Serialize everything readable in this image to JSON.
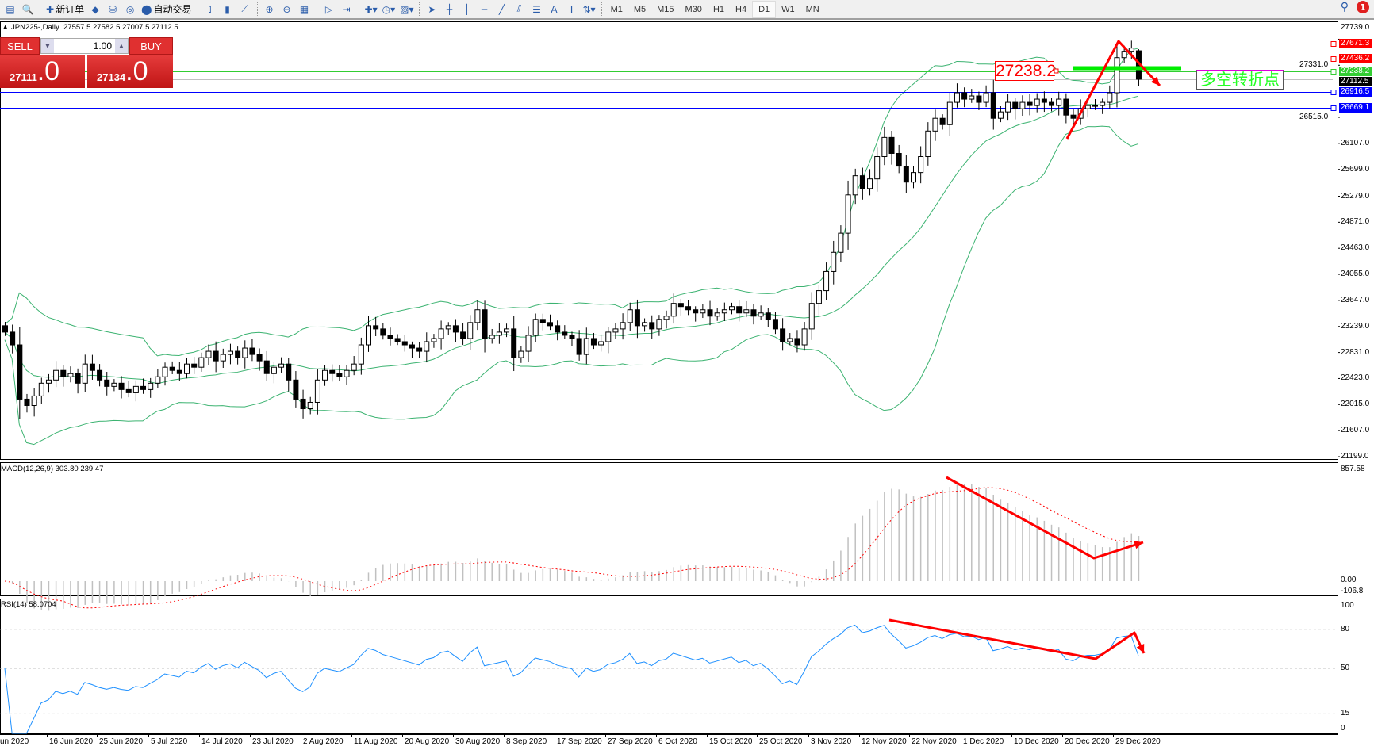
{
  "toolbar": {
    "buttons": [
      {
        "icon": "chart-window-icon",
        "glyph": "▤"
      },
      {
        "icon": "market-watch-icon",
        "glyph": "🔍"
      },
      {
        "icon": "new-order-icon",
        "glyph": "✚",
        "label": "新订单"
      },
      {
        "icon": "metaeditor-icon",
        "glyph": "◆"
      },
      {
        "icon": "terminal-icon",
        "glyph": "⛁"
      },
      {
        "icon": "signals-icon",
        "glyph": "◎"
      },
      {
        "icon": "auto-trading-icon",
        "glyph": "⬤",
        "label": "自动交易"
      },
      {
        "icon": "bar-chart-icon",
        "glyph": "⫾"
      },
      {
        "icon": "candlestick-icon",
        "glyph": "▮"
      },
      {
        "icon": "line-chart-icon",
        "glyph": "⟋"
      },
      {
        "icon": "zoom-in-icon",
        "glyph": "⊕"
      },
      {
        "icon": "zoom-out-icon",
        "glyph": "⊖"
      },
      {
        "icon": "tile-windows-icon",
        "glyph": "▦"
      },
      {
        "icon": "auto-scroll-icon",
        "glyph": "▷"
      },
      {
        "icon": "chart-shift-icon",
        "glyph": "⇥"
      },
      {
        "icon": "indicators-icon",
        "glyph": "✚▾"
      },
      {
        "icon": "periods-icon",
        "glyph": "◷▾"
      },
      {
        "icon": "templates-icon",
        "glyph": "▨▾"
      },
      {
        "icon": "cursor-icon",
        "glyph": "➤"
      },
      {
        "icon": "crosshair-icon",
        "glyph": "┼"
      },
      {
        "icon": "vertical-line-icon",
        "glyph": "│"
      },
      {
        "icon": "horizontal-line-icon",
        "glyph": "─"
      },
      {
        "icon": "trendline-icon",
        "glyph": "╱"
      },
      {
        "icon": "equidistant-channel-icon",
        "glyph": "⫽"
      },
      {
        "icon": "fibonacci-icon",
        "glyph": "☰"
      },
      {
        "icon": "text-icon",
        "glyph": "A"
      },
      {
        "icon": "text-label-icon",
        "glyph": "T"
      },
      {
        "icon": "arrows-icon",
        "glyph": "⇅▾"
      }
    ],
    "timeframes": [
      "M1",
      "M5",
      "M15",
      "M30",
      "H1",
      "H4",
      "D1",
      "W1",
      "MN"
    ],
    "active_timeframe": "D1",
    "search_icon": "search-icon",
    "notification_count": "1"
  },
  "chart_header": {
    "symbol": "JPN225-,Daily",
    "ohlc": "27557.5 27582.5 27007.5 27112.5"
  },
  "trade_panel": {
    "sell_label": "SELL",
    "buy_label": "BUY",
    "lot": "1.00",
    "sell_price_main": "27111",
    "sell_price_big": ".0",
    "buy_price_main": "27134",
    "buy_price_big": ".0"
  },
  "price_axis": [
    "27739.0",
    "27331.0",
    "26515.0",
    "26107.0",
    "25699.0",
    "25279.0",
    "24871.0",
    "24463.0",
    "24055.0",
    "23647.0",
    "23239.0",
    "22831.0",
    "22423.0",
    "22015.0",
    "21607.0",
    "21199.0"
  ],
  "levels": [
    {
      "price": "27671.3",
      "color": "#ff0000"
    },
    {
      "price": "27436.2",
      "color": "#ff0000"
    },
    {
      "price": "27238.2",
      "color": "#32cd32"
    },
    {
      "price": "27112.5",
      "color": "#000000",
      "line": "#c0c0c0"
    },
    {
      "price": "26916.5",
      "color": "#0000ff"
    },
    {
      "price": "26669.1",
      "color": "#0000ff"
    }
  ],
  "time_axis": [
    "Jun 2020",
    "16 Jun 2020",
    "25 Jun 2020",
    "5 Jul 2020",
    "14 Jul 2020",
    "23 Jul 2020",
    "2 Aug 2020",
    "11 Aug 2020",
    "20 Aug 2020",
    "30 Aug 2020",
    "8 Sep 2020",
    "17 Sep 2020",
    "27 Sep 2020",
    "6 Oct 2020",
    "15 Oct 2020",
    "25 Oct 2020",
    "3 Nov 2020",
    "12 Nov 2020",
    "22 Nov 2020",
    "1 Dec 2020",
    "10 Dec 2020",
    "20 Dec 2020",
    "29 Dec 2020"
  ],
  "macd": {
    "label": "MACD(12,26,9) 303.80 239.47",
    "axis": [
      "857.58",
      "0.00",
      "-106.8"
    ],
    "max": 857.58,
    "min": -106.8
  },
  "rsi": {
    "label": "RSI(14) 58.0704",
    "axis": [
      "100",
      "80",
      "50",
      "15",
      "0"
    ],
    "levels": [
      80,
      50,
      15
    ]
  },
  "annotations": {
    "price_label": "27238.2",
    "text": "多空转折点",
    "arrow_color": "#ff0000",
    "bar_color": "#00ee00"
  },
  "colors": {
    "bollinger": "#3cb371",
    "macd_hist": "#c0c0c0",
    "macd_signal": "#ff0000",
    "rsi": "#1e90ff"
  },
  "chart_data": {
    "type": "candlestick",
    "symbol": "JPN225-",
    "timeframe": "Daily",
    "ylim": [
      21149,
      28005
    ],
    "indicators": [
      "Bollinger Bands",
      "MACD(12,26,9)",
      "RSI(14)"
    ],
    "last_bar": {
      "open": 27557.5,
      "high": 27582.5,
      "low": 27007.5,
      "close": 27112.5
    },
    "closes": [
      23150,
      22950,
      22100,
      22000,
      22150,
      22350,
      22400,
      22550,
      22450,
      22500,
      22350,
      22650,
      22550,
      22400,
      22300,
      22350,
      22250,
      22200,
      22300,
      22250,
      22350,
      22450,
      22600,
      22550,
      22500,
      22650,
      22600,
      22750,
      22850,
      22700,
      22800,
      22850,
      22750,
      22900,
      22800,
      22700,
      22500,
      22600,
      22650,
      22400,
      22100,
      21950,
      22050,
      22400,
      22550,
      22500,
      22450,
      22550,
      22650,
      22950,
      23250,
      23200,
      23100,
      23050,
      23000,
      22950,
      22900,
      22850,
      23000,
      23050,
      23200,
      23250,
      23150,
      23050,
      23300,
      23500,
      23050,
      23100,
      23150,
      23200,
      22750,
      22850,
      23100,
      23350,
      23300,
      23250,
      23150,
      23100,
      23050,
      22800,
      23050,
      22950,
      23000,
      23150,
      23200,
      23300,
      23500,
      23250,
      23300,
      23200,
      23350,
      23400,
      23600,
      23550,
      23500,
      23450,
      23500,
      23400,
      23450,
      23500,
      23550,
      23450,
      23500,
      23400,
      23450,
      23350,
      23200,
      23000,
      23050,
      22950,
      23200,
      23600,
      23800,
      24100,
      24400,
      24700,
      25300,
      25600,
      25400,
      25550,
      25900,
      26200,
      25950,
      25750,
      25500,
      25650,
      25900,
      26300,
      26500,
      26400,
      26750,
      26900,
      26800,
      26850,
      26750,
      26900,
      26500,
      26600,
      26750,
      26650,
      26750,
      26700,
      26800,
      26750,
      26700,
      26800,
      26550,
      26500,
      26650,
      26700,
      26700,
      26750,
      26900,
      27450,
      27550,
      27600,
      27112.5
    ]
  }
}
